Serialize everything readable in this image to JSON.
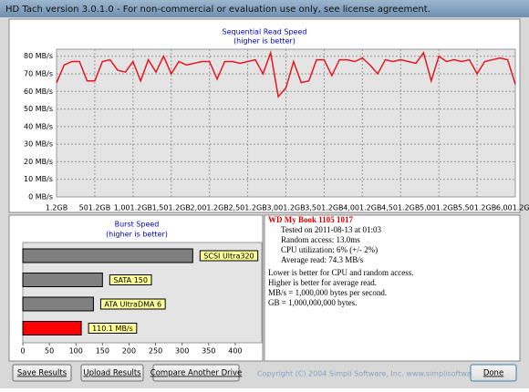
{
  "window": {
    "title": "HD Tach version 3.0.1.0  - For non-commercial or evaluation use only, see license agreement."
  },
  "chart_data": [
    {
      "type": "line",
      "title": "Sequential Read Speed",
      "subtitle": "(higher is better)",
      "color": "#e8141e",
      "grid": true,
      "x": [
        1.2,
        101.2,
        201.2,
        301.2,
        401.2,
        501.2,
        601.2,
        701.2,
        801.2,
        901.2,
        1001.2,
        1101.2,
        1201.2,
        1301.2,
        1401.2,
        1501.2,
        1601.2,
        1701.2,
        1801.2,
        1901.2,
        2001.2,
        2101.2,
        2201.2,
        2301.2,
        2401.2,
        2501.2,
        2601.2,
        2701.2,
        2801.2,
        2901.2,
        3001.2,
        3101.2,
        3201.2,
        3301.2,
        3401.2,
        3501.2,
        3601.2,
        3701.2,
        3801.2,
        3901.2,
        4001.2,
        4101.2,
        4201.2,
        4301.2,
        4401.2,
        4501.2,
        4601.2,
        4701.2,
        4801.2,
        4901.2,
        5001.2,
        5101.2,
        5201.2,
        5301.2,
        5401.2,
        5501.2,
        5601.2,
        5701.2,
        5801.2,
        5901.2,
        6001.2
      ],
      "values": [
        65,
        75,
        77,
        77,
        66,
        66,
        77,
        78,
        72,
        71,
        77,
        66,
        78,
        71,
        80,
        70,
        77,
        75,
        76,
        77,
        77,
        67,
        77,
        77,
        76,
        77,
        78,
        70,
        82,
        57,
        62,
        77,
        65,
        66,
        78,
        78,
        69,
        78,
        78,
        77,
        79,
        75,
        70,
        78,
        77,
        78,
        77,
        76,
        82,
        66,
        80,
        77,
        78,
        77,
        78,
        70,
        77,
        78,
        79,
        78,
        64
      ],
      "xlim": [
        1.2,
        6001.2
      ],
      "xticks": [
        {
          "value": 1.2,
          "label": "1.2GB"
        },
        {
          "value": 501.2,
          "label": "501.2GB"
        },
        {
          "value": 1001.2,
          "label": "1,001.2GB"
        },
        {
          "value": 1501.2,
          "label": "1,501.2GB"
        },
        {
          "value": 2001.2,
          "label": "2,001.2GB"
        },
        {
          "value": 2501.2,
          "label": "2,501.2GB"
        },
        {
          "value": 3001.2,
          "label": "3,001.2GB"
        },
        {
          "value": 3501.2,
          "label": "3,501.2GB"
        },
        {
          "value": 4001.2,
          "label": "4,001.2GB"
        },
        {
          "value": 4501.2,
          "label": "4,501.2GB"
        },
        {
          "value": 5001.2,
          "label": "5,001.2GB"
        },
        {
          "value": 5501.2,
          "label": "5,501.2GB"
        },
        {
          "value": 6001.2,
          "label": "6,001.2GB"
        }
      ],
      "ylim": [
        0,
        84
      ],
      "yticks": [
        {
          "value": 0,
          "label": "0 MB/s"
        },
        {
          "value": 10,
          "label": "10 MB/s"
        },
        {
          "value": 20,
          "label": "20 MB/s"
        },
        {
          "value": 30,
          "label": "30 MB/s"
        },
        {
          "value": 40,
          "label": "40 MB/s"
        },
        {
          "value": 50,
          "label": "50 MB/s"
        },
        {
          "value": 60,
          "label": "60 MB/s"
        },
        {
          "value": 70,
          "label": "70 MB/s"
        },
        {
          "value": 80,
          "label": "80 MB/s"
        }
      ]
    },
    {
      "type": "hbar",
      "title": "Burst Speed",
      "subtitle": "(higher is better)",
      "categories": [
        "SCSI Ultra320",
        "SATA 150",
        "ATA UltraDMA 6",
        null
      ],
      "values": [
        320,
        150,
        133,
        110.1
      ],
      "value_labels": [
        null,
        null,
        null,
        "110.1 MB/s"
      ],
      "colors": [
        "#808080",
        "#808080",
        "#808080",
        "#ff0000"
      ],
      "xlim": [
        0,
        450
      ],
      "xticks": [
        0,
        50,
        100,
        150,
        200,
        250,
        300,
        350,
        400
      ]
    }
  ],
  "info": {
    "drive": "WD My Book 1105 1017",
    "lines": [
      "Tested on 2011-08-13 at 01:03",
      "Random access: 13.0ms",
      "CPU utilization: 6% (+/- 2%)",
      "Average read: 74.3 MB/s"
    ],
    "notes": [
      "Lower is better for CPU and random access.",
      "Higher is better for average read.",
      "MB/s = 1,000,000 bytes per second.",
      "GB = 1,000,000,000 bytes."
    ]
  },
  "buttons": [
    "Save Results",
    "Upload Results",
    "Compare Another Drive",
    "Done"
  ],
  "copyright": "Copyright (C) 2004 Simpli Software, Inc. www.simplisoftware.com"
}
